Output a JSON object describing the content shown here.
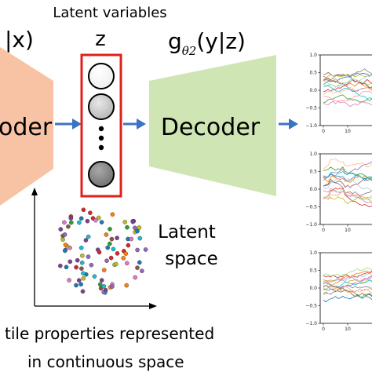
{
  "latent_title": "Latent variables",
  "encoder": {
    "formula_left": "|x)",
    "label": "oder",
    "color": "#F7C3A4"
  },
  "latent": {
    "symbol": "z",
    "dots": "•\n•\n•",
    "box_color": "#E0201B"
  },
  "decoder": {
    "formula_g": "g",
    "formula_sub": "θ2",
    "formula_rest": "(y|z)",
    "label": "Decoder",
    "color": "#CFE6B4"
  },
  "arrow_color": "#3A72C4",
  "latent_space": {
    "label_line1": "Latent",
    "label_line2": "space"
  },
  "caption": {
    "line1": "tile properties represented",
    "line2": "in continuous space"
  },
  "plots": [
    {
      "y_ticks": [
        "1.0",
        "0.5",
        "0.0",
        "−0.5",
        "−1.0"
      ],
      "x_ticks": [
        "0",
        "10"
      ]
    },
    {
      "y_ticks": [
        "1.0",
        "0.5",
        "0.0",
        "−0.5",
        "−1.0"
      ],
      "x_ticks": [
        "0",
        "10"
      ]
    },
    {
      "y_ticks": [
        "1.0",
        "0.5",
        "0.0",
        "−0.5",
        "−1.0"
      ],
      "x_ticks": [
        "0",
        "10"
      ]
    }
  ]
}
